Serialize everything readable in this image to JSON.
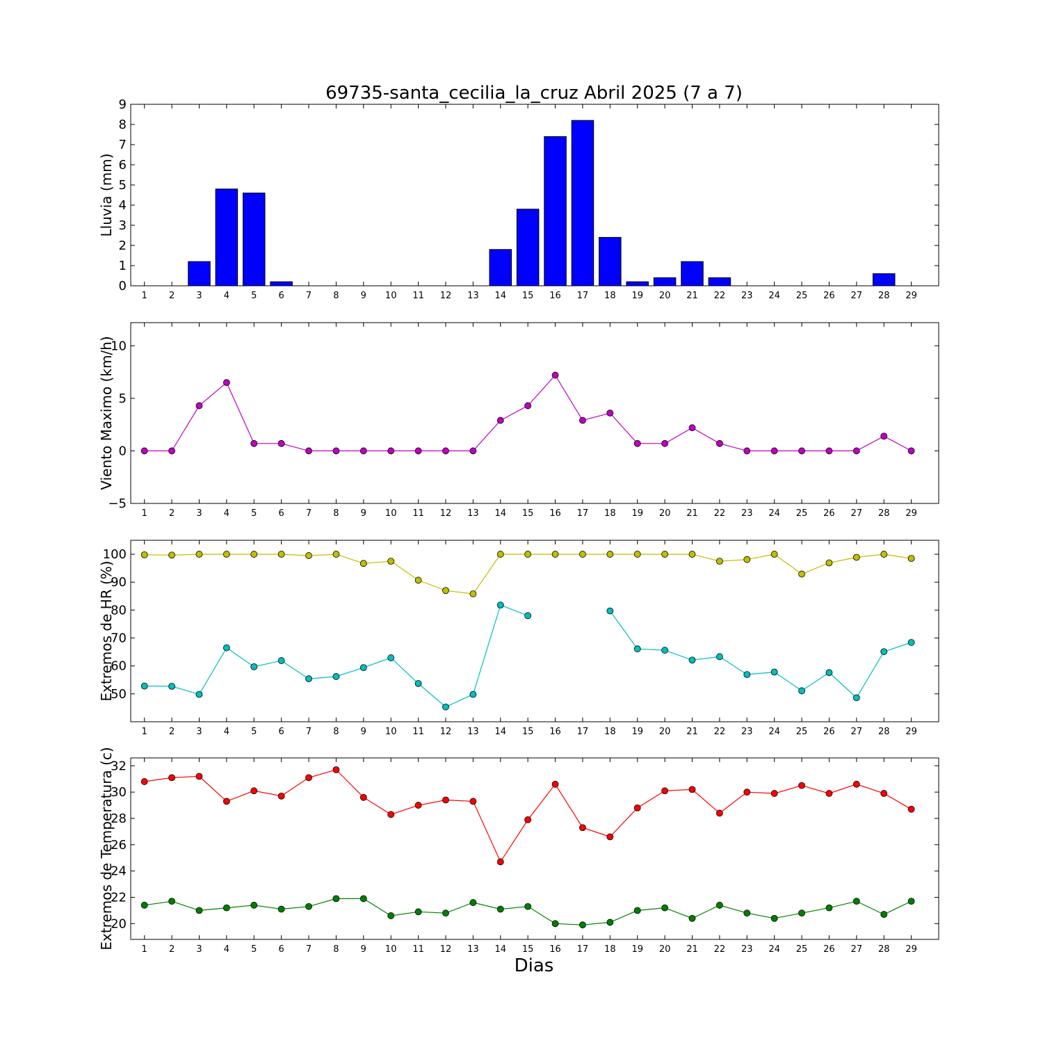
{
  "title": "69735-santa_cecilia_la_cruz Abril 2025  (7 a 7)",
  "xlabel": "Dias",
  "chart_data": [
    {
      "type": "bar",
      "ylabel": "Lluvia (mm)",
      "x": [
        1,
        2,
        3,
        4,
        5,
        6,
        7,
        8,
        9,
        10,
        11,
        12,
        13,
        14,
        15,
        16,
        17,
        18,
        19,
        20,
        21,
        22,
        23,
        24,
        25,
        26,
        27,
        28,
        29
      ],
      "ylim": [
        0,
        9
      ],
      "yticks": [
        0,
        1,
        2,
        3,
        4,
        5,
        6,
        7,
        8,
        9
      ],
      "series": [
        {
          "color": "#0000ff",
          "values": [
            0,
            0,
            1.2,
            4.8,
            4.6,
            0.2,
            0,
            0,
            0,
            0,
            0,
            0,
            0,
            1.8,
            3.8,
            7.4,
            8.2,
            2.4,
            0.2,
            0.4,
            1.2,
            0.4,
            0,
            0,
            0,
            0,
            0,
            0.6,
            0
          ]
        }
      ]
    },
    {
      "type": "line",
      "ylabel": "Viento Maximo (km/h)",
      "x": [
        1,
        2,
        3,
        4,
        5,
        6,
        7,
        8,
        9,
        10,
        11,
        12,
        13,
        14,
        15,
        16,
        17,
        18,
        19,
        20,
        21,
        22,
        23,
        24,
        25,
        26,
        27,
        28,
        29
      ],
      "ylim": [
        -5,
        12.2
      ],
      "yticks": [
        -5,
        0,
        5,
        10
      ],
      "series": [
        {
          "color": "#bf00bf",
          "values": [
            0,
            0,
            4.3,
            6.5,
            0.7,
            0.7,
            0,
            0,
            0,
            0,
            0,
            0,
            0,
            2.9,
            4.3,
            7.2,
            2.9,
            3.6,
            0.7,
            0.7,
            2.2,
            0.7,
            0,
            0,
            0,
            0,
            0,
            1.4,
            0
          ]
        }
      ]
    },
    {
      "type": "line",
      "ylabel": "Extremos de HR (%)",
      "x": [
        1,
        2,
        3,
        4,
        5,
        6,
        7,
        8,
        9,
        10,
        11,
        12,
        13,
        14,
        15,
        16,
        17,
        18,
        19,
        20,
        21,
        22,
        23,
        24,
        25,
        26,
        27,
        28,
        29
      ],
      "ylim": [
        40,
        105
      ],
      "yticks": [
        50,
        60,
        70,
        80,
        90,
        100
      ],
      "series": [
        {
          "color": "#bfbf00",
          "values": [
            99.8,
            99.7,
            100,
            100,
            100,
            100,
            99.5,
            100,
            96.7,
            97.5,
            90.7,
            87,
            85.8,
            100,
            100,
            100,
            100,
            100,
            100,
            100,
            100,
            97.5,
            98.1,
            100,
            92.9,
            96.9,
            98.9,
            100,
            98.5
          ]
        },
        {
          "color": "#00bfbf",
          "values": [
            52.8,
            52.7,
            49.8,
            66.5,
            59.7,
            61.9,
            55.4,
            56.2,
            59.4,
            62.9,
            53.7,
            45.3,
            49.8,
            81.8,
            78,
            null,
            null,
            79.7,
            66.1,
            65.6,
            62.1,
            63.3,
            56.9,
            57.8,
            51.1,
            57.6,
            48.6,
            65.1,
            68.4
          ]
        }
      ]
    },
    {
      "type": "line",
      "ylabel": "Extremos de Temperatura (c)",
      "x": [
        1,
        2,
        3,
        4,
        5,
        6,
        7,
        8,
        9,
        10,
        11,
        12,
        13,
        14,
        15,
        16,
        17,
        18,
        19,
        20,
        21,
        22,
        23,
        24,
        25,
        26,
        27,
        28,
        29
      ],
      "ylim": [
        18.8,
        32.6
      ],
      "yticks": [
        20,
        22,
        24,
        26,
        28,
        30,
        32
      ],
      "series": [
        {
          "color": "#ff0000",
          "values": [
            30.8,
            31.1,
            31.2,
            29.3,
            30.1,
            29.7,
            31.1,
            31.7,
            29.6,
            28.3,
            29,
            29.4,
            29.3,
            24.7,
            27.9,
            30.6,
            27.3,
            26.6,
            28.8,
            30.1,
            30.2,
            28.4,
            30,
            29.9,
            30.5,
            29.9,
            30.6,
            29.9,
            28.7
          ]
        },
        {
          "color": "#008000",
          "values": [
            21.4,
            21.7,
            21,
            21.2,
            21.4,
            21.1,
            21.3,
            21.9,
            21.9,
            20.6,
            20.9,
            20.8,
            21.6,
            21.1,
            21.3,
            20,
            19.9,
            20.1,
            21,
            21.2,
            20.4,
            21.4,
            20.8,
            20.4,
            20.8,
            21.2,
            21.7,
            20.7,
            21.7
          ]
        }
      ]
    }
  ]
}
